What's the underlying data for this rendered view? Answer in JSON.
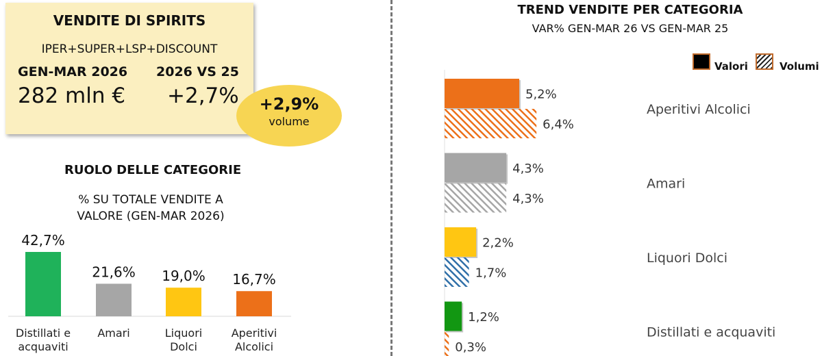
{
  "summary": {
    "title": "VENDITE DI SPIRITS",
    "channels": "IPER+SUPER+LSP+DISCOUNT",
    "period_label": "GEN-MAR 2026",
    "period_value": "282 mln €",
    "comparison_label": "2026 VS 25",
    "comparison_value": "+2,7%",
    "volume_value": "+2,9%",
    "volume_label": "volume"
  },
  "left_section": {
    "title": "RUOLO DELLE CATEGORIE",
    "subtitle_line1": "% SU TOTALE VENDITE A",
    "subtitle_line2": "VALORE (GEN-MAR 2026)"
  },
  "right_section": {
    "title": "TREND VENDITE PER CATEGORIA",
    "subtitle": "VAR% GEN-MAR 26 VS GEN-MAR 25",
    "legend": {
      "valori": "Valori",
      "volumi": "Volumi"
    }
  },
  "colors": {
    "distillati": "#1fb25a",
    "amari": "#a6a6a6",
    "liquori": "#ffc612",
    "aperitivi": "#ec7019",
    "distillati_trend": "#129712",
    "liquori_hatch": "#2f6fa8",
    "bubble": "#f7d553",
    "box": "#fbefc0"
  },
  "chart_data": [
    {
      "type": "bar",
      "title": "RUOLO DELLE CATEGORIE",
      "subtitle": "% SU TOTALE VENDITE A VALORE (GEN-MAR 2026)",
      "categories": [
        [
          "Distillati e",
          "acquaviti"
        ],
        [
          "Amari"
        ],
        [
          "Liquori",
          "Dolci"
        ],
        [
          "Aperitivi",
          "Alcolici"
        ]
      ],
      "values": [
        42.7,
        21.6,
        19.0,
        16.7
      ],
      "labels": [
        "42,7%",
        "21,6%",
        "19,0%",
        "16,7%"
      ],
      "ylim": [
        0,
        42.7
      ]
    },
    {
      "type": "bar",
      "orientation": "horizontal",
      "title": "TREND VENDITE PER CATEGORIA",
      "subtitle": "VAR% GEN-MAR 26 VS GEN-MAR 25",
      "categories": [
        "Aperitivi Alcolici",
        "Amari",
        "Liquori Dolci",
        "Distillati e acquaviti"
      ],
      "series": [
        {
          "name": "Valori",
          "values": [
            5.2,
            4.3,
            2.2,
            1.2
          ],
          "labels": [
            "5,2%",
            "4,3%",
            "2,2%",
            "1,2%"
          ]
        },
        {
          "name": "Volumi",
          "values": [
            6.4,
            4.3,
            1.7,
            0.3
          ],
          "labels": [
            "6,4%",
            "4,3%",
            "1,7%",
            "0,3%"
          ]
        }
      ],
      "legend": "top-right"
    }
  ]
}
